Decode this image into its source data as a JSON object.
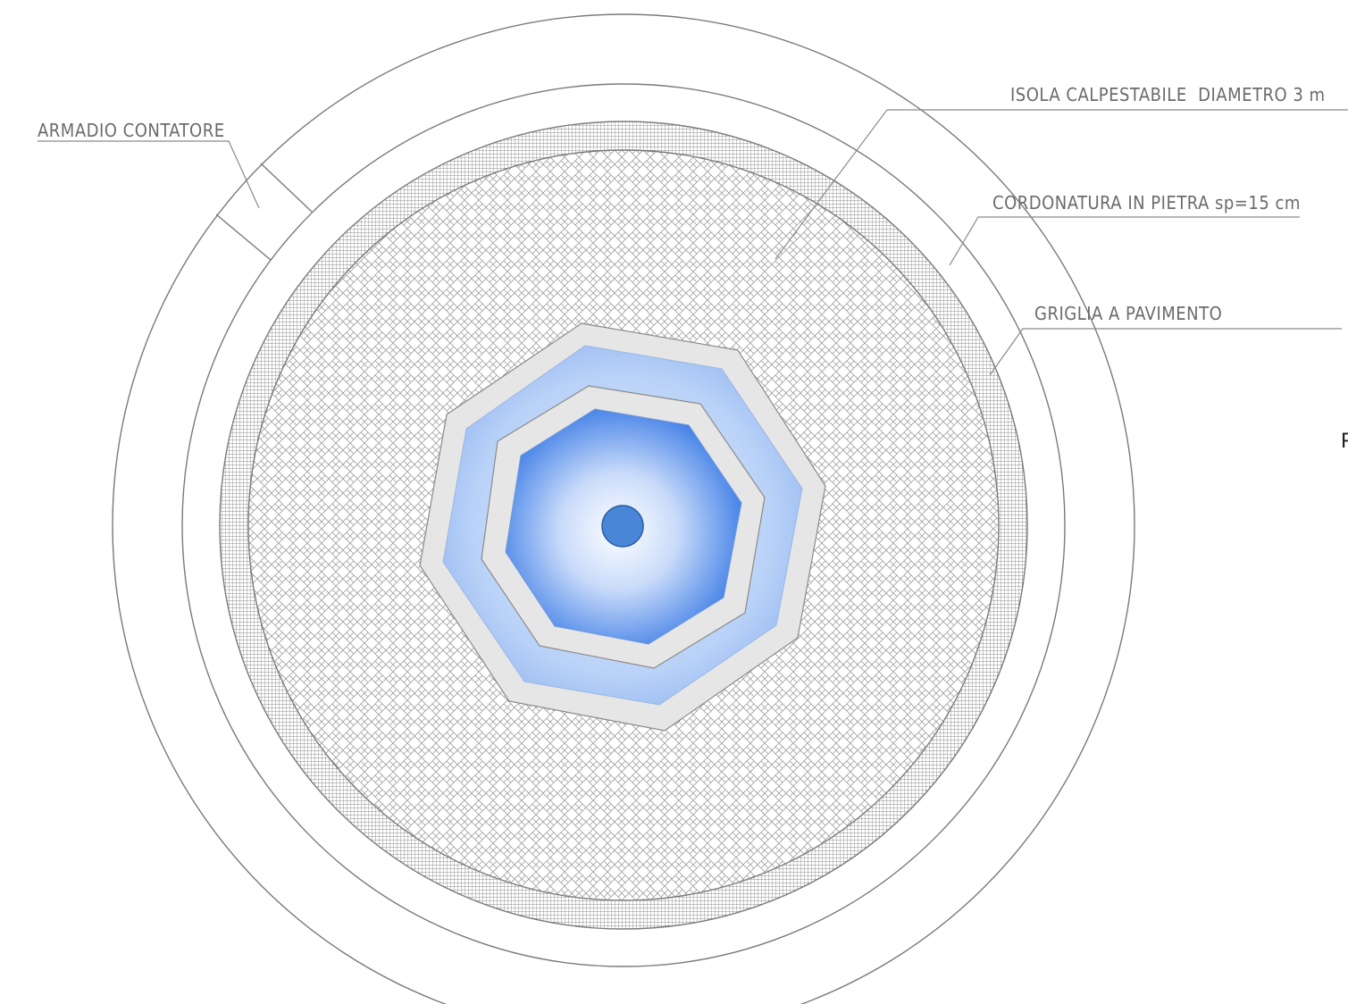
{
  "labels": {
    "armadio": "ARMADIO CONTATORE",
    "isola": "ISOLA CALPESTABILE  DIAMETRO 3 m",
    "cordonatura": "CORDONATURA IN PIETRA sp=15 cm",
    "griglia": "GRIGLIA A PAVIMENTO",
    "cut_edge_char": "F"
  },
  "colors": {
    "line": "#7a7a7a",
    "hatch": "#8c8c8c",
    "stone": "#e6e6e6",
    "water_light": "#ffffff",
    "water_mid": "#a9c6f5",
    "water_deep": "#3f7ee6",
    "center_disc": "#4a86d8"
  }
}
